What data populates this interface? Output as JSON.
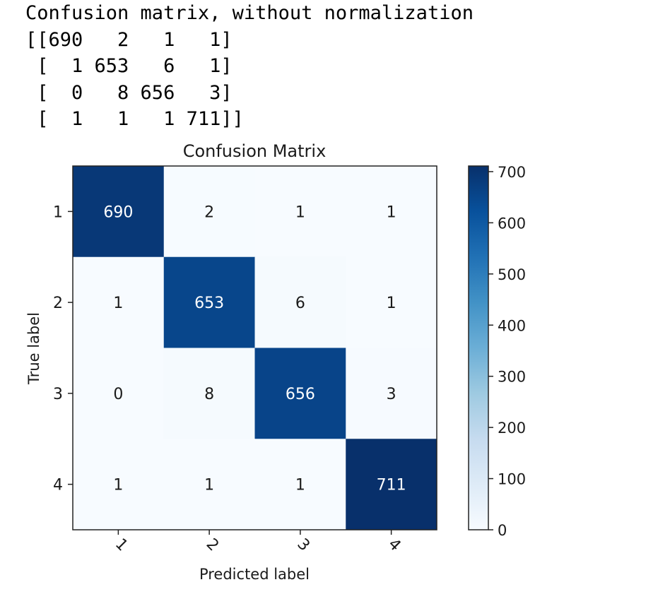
{
  "output": {
    "heading": "Confusion matrix, without normalization",
    "matrix_lines": [
      "[[690   2   1   1]",
      " [  1 653   6   1]",
      " [  0   8 656   3]",
      " [  1   1   1 711]]"
    ]
  },
  "chart_data": {
    "type": "heatmap",
    "title": "Confusion Matrix",
    "xlabel": "Predicted label",
    "ylabel": "True label",
    "x_categories": [
      "1",
      "2",
      "3",
      "4"
    ],
    "y_categories": [
      "1",
      "2",
      "3",
      "4"
    ],
    "values": [
      [
        690,
        2,
        1,
        1
      ],
      [
        1,
        653,
        6,
        1
      ],
      [
        0,
        8,
        656,
        3
      ],
      [
        1,
        1,
        1,
        711
      ]
    ],
    "colormap": "Blues",
    "vmin": 0,
    "vmax": 711,
    "colorbar_ticks": [
      0,
      100,
      200,
      300,
      400,
      500,
      600,
      700
    ],
    "grid": false
  }
}
